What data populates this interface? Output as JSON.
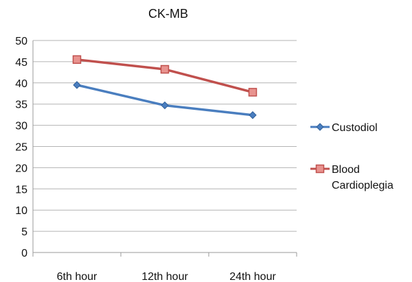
{
  "chart_data": {
    "type": "line",
    "title": "CK-MB",
    "xlabel": "",
    "ylabel": "",
    "categories": [
      "6th hour",
      "12th hour",
      "24th hour"
    ],
    "ylim": [
      0,
      50
    ],
    "yticks": [
      0,
      5,
      10,
      15,
      20,
      25,
      30,
      35,
      40,
      45,
      50
    ],
    "grid": true,
    "legend_position": "right",
    "series": [
      {
        "name": "Custodiol",
        "values": [
          39.5,
          34.7,
          32.4
        ],
        "color": "#4a7ebf",
        "marker": "diamond"
      },
      {
        "name": "Blood Cardioplegia",
        "legend_lines": [
          "Blood",
          "Cardioplegia"
        ],
        "values": [
          45.5,
          43.2,
          37.8
        ],
        "color": "#c0504d",
        "marker": "square"
      }
    ]
  }
}
